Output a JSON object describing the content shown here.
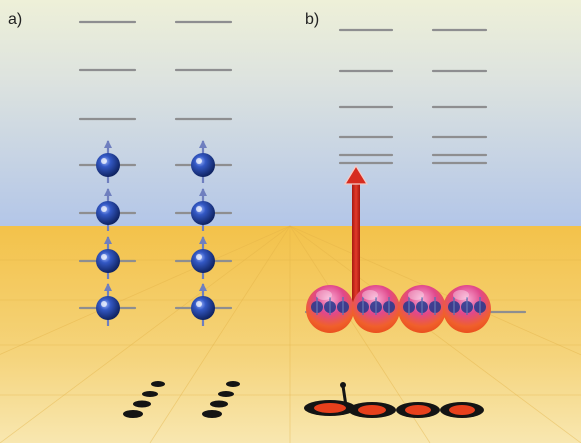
{
  "panels": {
    "a": {
      "label": "a)"
    },
    "b": {
      "label": "b)"
    }
  },
  "colors": {
    "sky_top": "#eef0d8",
    "sky_bottom": "#b9c9e6",
    "floor_top": "#f4c552",
    "floor_bottom": "#f7e4a6",
    "level_line": "#8e8e90",
    "atom_blue": "#1f3f9a",
    "atom_pink": "#e0488c",
    "atom_orange": "#f05a2a",
    "arrow_red": "#d62b1f",
    "shadow": "#141414"
  },
  "icons": {
    "atom": "spin-up-atom-icon",
    "excitation": "up-arrow-icon"
  }
}
